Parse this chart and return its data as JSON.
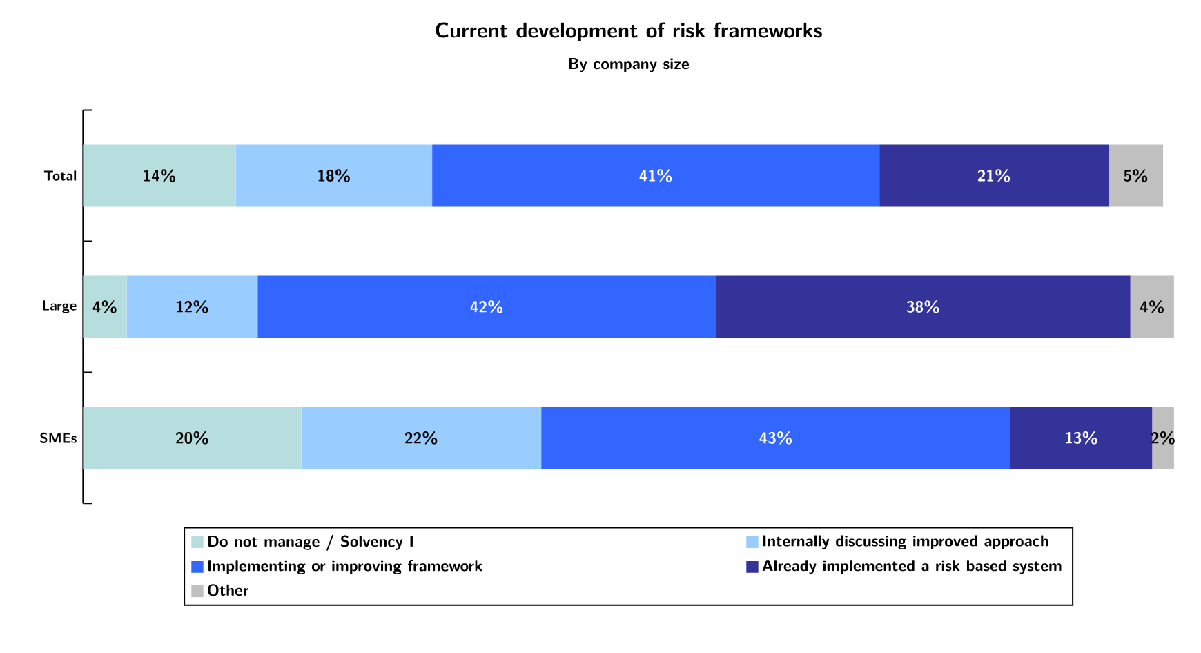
{
  "chart_data": {
    "type": "bar",
    "orientation": "horizontal",
    "stacked": true,
    "title": "Current development of risk frameworks",
    "subtitle": "By company size",
    "categories": [
      "Total",
      "Large",
      "SMEs"
    ],
    "series": [
      {
        "name": "Do not manage / Solvency I",
        "color": "#b7dede",
        "values": [
          14,
          4,
          20
        ],
        "value_labels": [
          "14%",
          "4%",
          "20%"
        ]
      },
      {
        "name": "Internally discussing improved approach",
        "color": "#99ccff",
        "values": [
          18,
          12,
          22
        ],
        "value_labels": [
          "18%",
          "12%",
          "22%"
        ]
      },
      {
        "name": "Implementing or improving framework",
        "color": "#3366ff",
        "values": [
          41,
          42,
          43
        ],
        "value_labels": [
          "41%",
          "42%",
          "43%"
        ]
      },
      {
        "name": "Already implemented a risk based system",
        "color": "#333399",
        "values": [
          21,
          38,
          13
        ],
        "value_labels": [
          "21%",
          "38%",
          "13%"
        ]
      },
      {
        "name": "Other",
        "color": "#c0c0c0",
        "values": [
          5,
          4,
          2
        ],
        "value_labels": [
          "5%",
          "4%",
          "2%"
        ]
      }
    ],
    "legend": "bottom",
    "tick_labels": "y"
  }
}
